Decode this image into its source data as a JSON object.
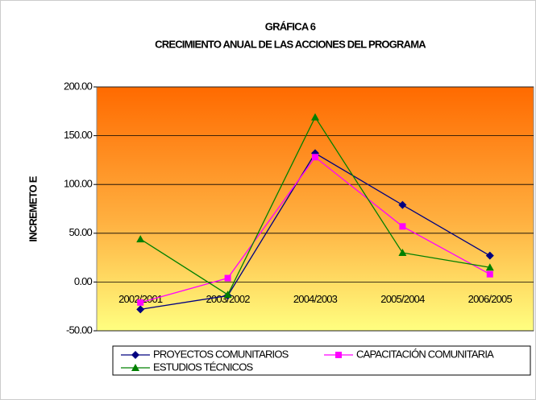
{
  "chart_data": {
    "type": "line",
    "title": "GRÁFICA 6",
    "subtitle": "CRECIMIENTO ANUAL DE LAS ACCIONES DEL PROGRAMA",
    "y_label": "INCREMETO E",
    "categories": [
      "2002/2001",
      "2003/2002",
      "2004/2003",
      "2005/2004",
      "2006/2005"
    ],
    "series": [
      {
        "name": "PROYECTOS COMUNITARIOS",
        "color": "#000080",
        "marker": "diamond",
        "values": [
          -28,
          -14,
          132,
          79,
          27
        ]
      },
      {
        "name": "CAPACITACIÓN COMUNITARIA",
        "color": "#ff00ff",
        "marker": "square",
        "values": [
          -21,
          4,
          128,
          57,
          8
        ]
      },
      {
        "name": "ESTUDIOS TÉCNICOS",
        "color": "#008000",
        "marker": "triangle",
        "values": [
          44,
          -13,
          169,
          30,
          15
        ]
      }
    ],
    "ylim": [
      -50,
      200
    ],
    "yticks": [
      {
        "value": -50,
        "label": "-50.00"
      },
      {
        "value": 0,
        "label": "0.00"
      },
      {
        "value": 50,
        "label": "50.00"
      },
      {
        "value": 100,
        "label": "100.00"
      },
      {
        "value": 150,
        "label": "150.00"
      },
      {
        "value": 200,
        "label": "200.00"
      }
    ],
    "grid": true
  }
}
